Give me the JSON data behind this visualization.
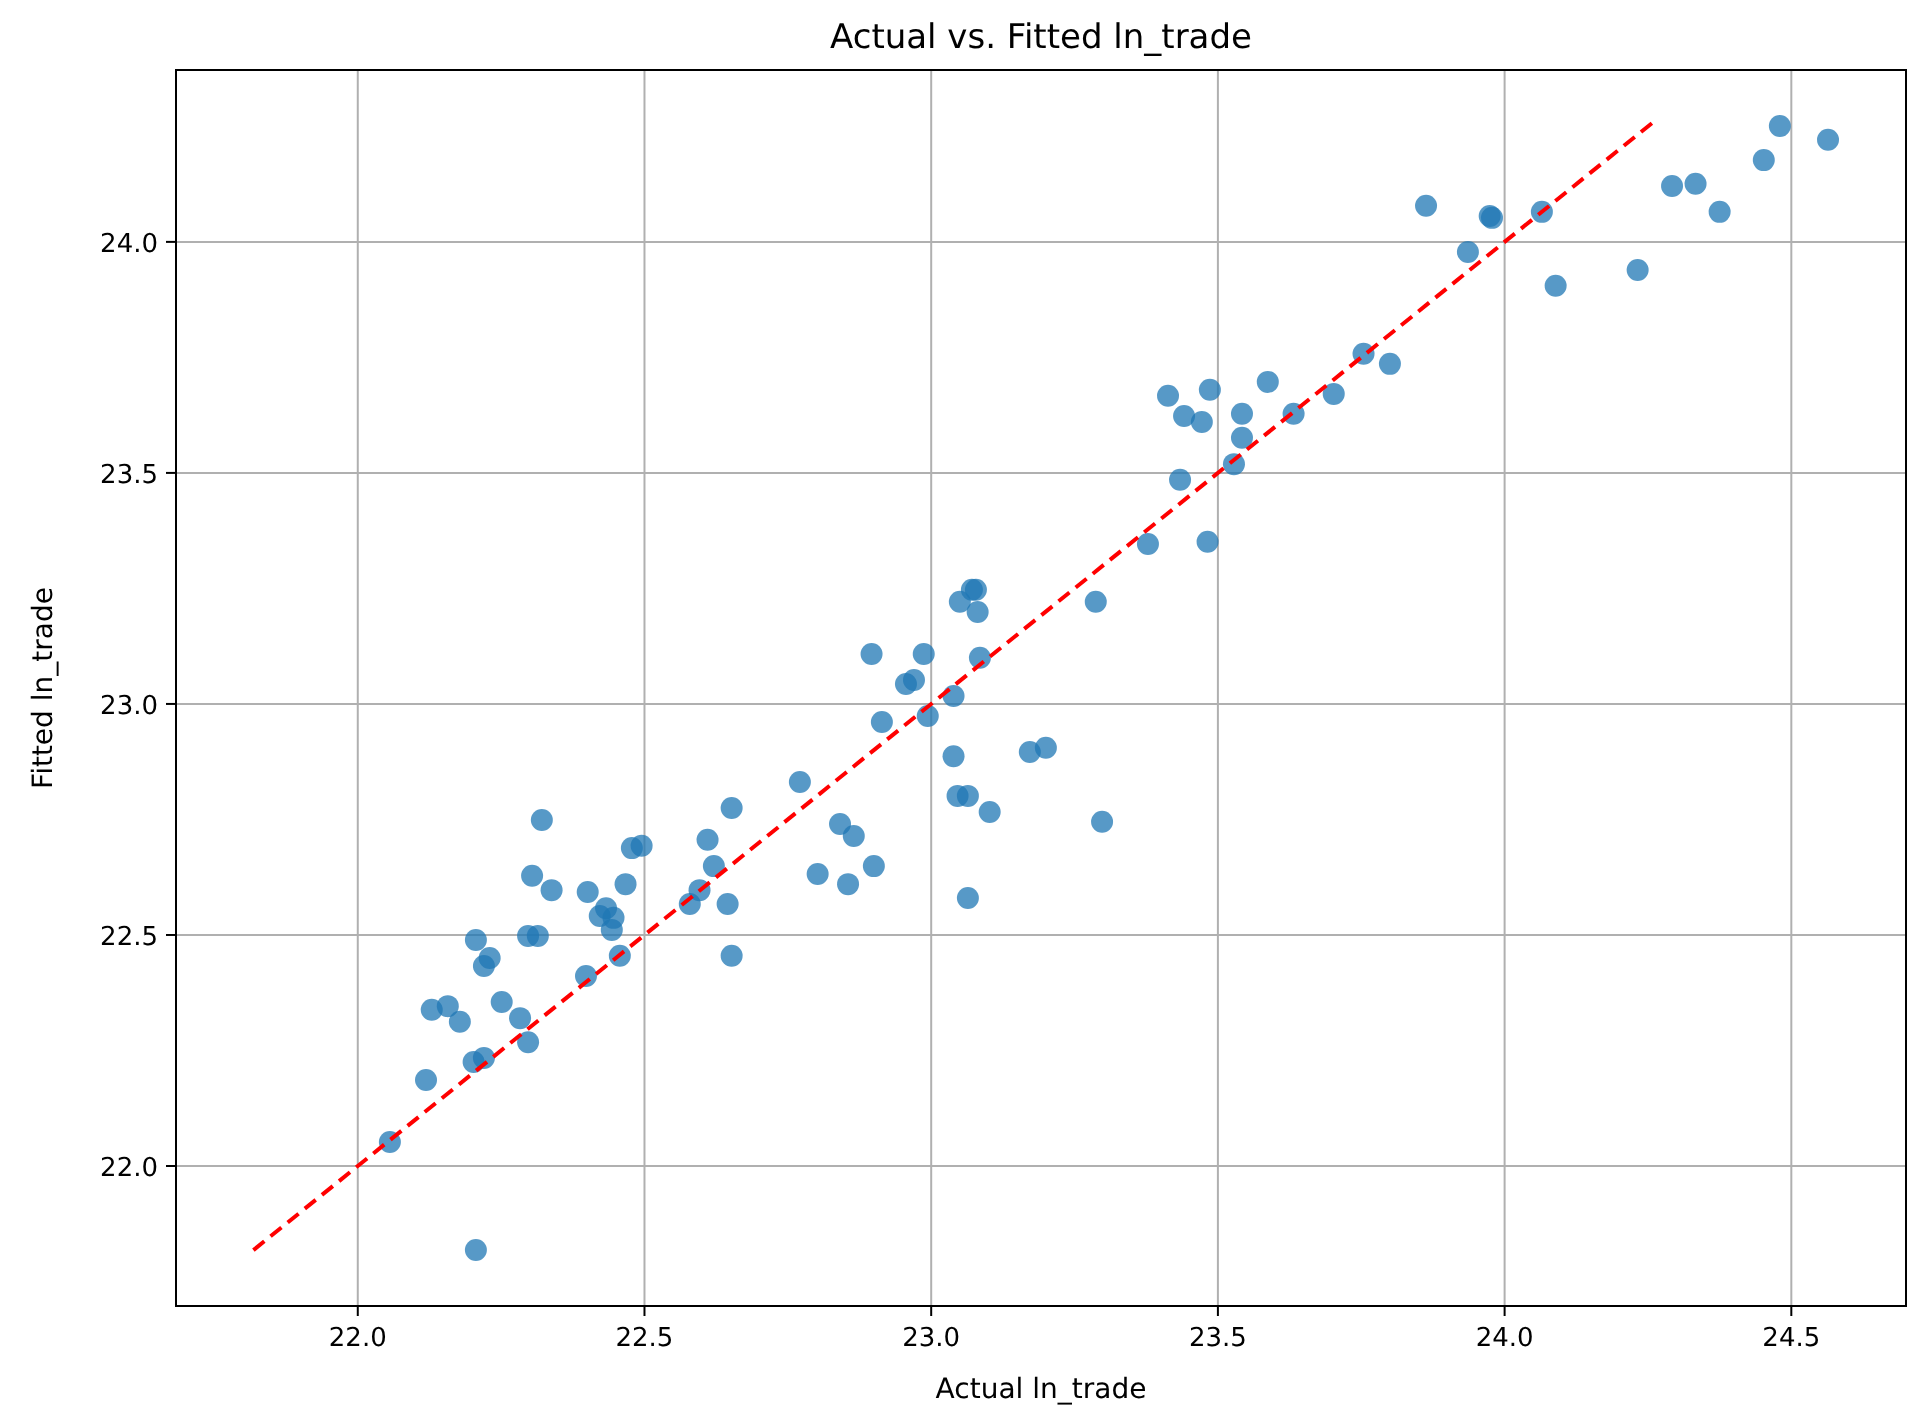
{
  "chart_data": {
    "type": "scatter",
    "title": "Actual vs. Fitted ln_trade",
    "xlabel": "Actual ln_trade",
    "ylabel": "Fitted ln_trade",
    "xlim": [
      21.683,
      24.7
    ],
    "ylim": [
      21.697,
      24.372
    ],
    "xticks": [
      {
        "value": 22,
        "label": "22.0"
      },
      {
        "value": 22.5,
        "label": "22.5"
      },
      {
        "value": 23,
        "label": "23.0"
      },
      {
        "value": 23.5,
        "label": "23.5"
      },
      {
        "value": 24,
        "label": "24.0"
      },
      {
        "value": 24.5,
        "label": "24.5"
      }
    ],
    "yticks": [
      {
        "value": 22,
        "label": "22.0"
      },
      {
        "value": 22.5,
        "label": "22.5"
      },
      {
        "value": 23,
        "label": "23.0"
      },
      {
        "value": 23.5,
        "label": "23.5"
      },
      {
        "value": 24,
        "label": "24.0"
      }
    ],
    "grid": true,
    "series": [
      {
        "color": "#1f77b4",
        "marker": "circle",
        "x": [
          22.056,
          22.206,
          22.119,
          22.129,
          22.157,
          22.178,
          22.202,
          22.22,
          22.206,
          22.22,
          22.23,
          22.251,
          22.283,
          22.297,
          22.297,
          22.314,
          22.304,
          22.321,
          22.338,
          22.398,
          22.401,
          22.422,
          22.433,
          22.443,
          22.446,
          22.457,
          22.467,
          22.478,
          22.495,
          22.579,
          22.596,
          22.61,
          22.621,
          22.645,
          22.652,
          22.652,
          22.771,
          22.802,
          22.841,
          22.855,
          22.865,
          22.9,
          22.896,
          22.914,
          22.956,
          22.97,
          22.987,
          22.994,
          23.039,
          23.039,
          23.046,
          23.064,
          23.05,
          23.071,
          23.078,
          23.081,
          23.085,
          23.064,
          23.102,
          23.172,
          23.2,
          23.287,
          23.298,
          23.378,
          23.413,
          23.434,
          23.441,
          23.472,
          23.482,
          23.486,
          23.528,
          23.542,
          23.542,
          23.632,
          23.587,
          23.702,
          23.754,
          23.8,
          23.863,
          23.936,
          23.974,
          23.978,
          24.065,
          24.089,
          24.232,
          24.292,
          24.333,
          24.375,
          24.452,
          24.48,
          24.564
        ],
        "values": [
          22.052,
          21.818,
          22.186,
          22.338,
          22.346,
          22.312,
          22.225,
          22.234,
          22.489,
          22.433,
          22.45,
          22.355,
          22.32,
          22.268,
          22.498,
          22.498,
          22.628,
          22.749,
          22.597,
          22.411,
          22.593,
          22.541,
          22.558,
          22.511,
          22.537,
          22.455,
          22.61,
          22.688,
          22.693,
          22.567,
          22.597,
          22.706,
          22.649,
          22.567,
          22.775,
          22.455,
          22.831,
          22.632,
          22.74,
          22.61,
          22.714,
          22.649,
          23.108,
          22.961,
          23.043,
          23.052,
          23.108,
          22.974,
          23.017,
          22.887,
          22.801,
          22.801,
          23.221,
          23.247,
          23.247,
          23.199,
          23.1,
          22.58,
          22.766,
          22.896,
          22.905,
          23.221,
          22.745,
          23.346,
          23.667,
          23.485,
          23.623,
          23.61,
          23.351,
          23.68,
          23.519,
          23.628,
          23.576,
          23.628,
          23.697,
          23.671,
          23.758,
          23.736,
          24.078,
          23.978,
          24.056,
          24.052,
          24.065,
          23.905,
          23.939,
          24.121,
          24.126,
          24.065,
          24.177,
          24.251,
          24.221
        ]
      },
      {
        "type": "line",
        "color": "#ff0000",
        "line_style": "dashed",
        "x": [
          21.818,
          24.257
        ],
        "values": [
          21.818,
          24.257
        ]
      }
    ]
  }
}
